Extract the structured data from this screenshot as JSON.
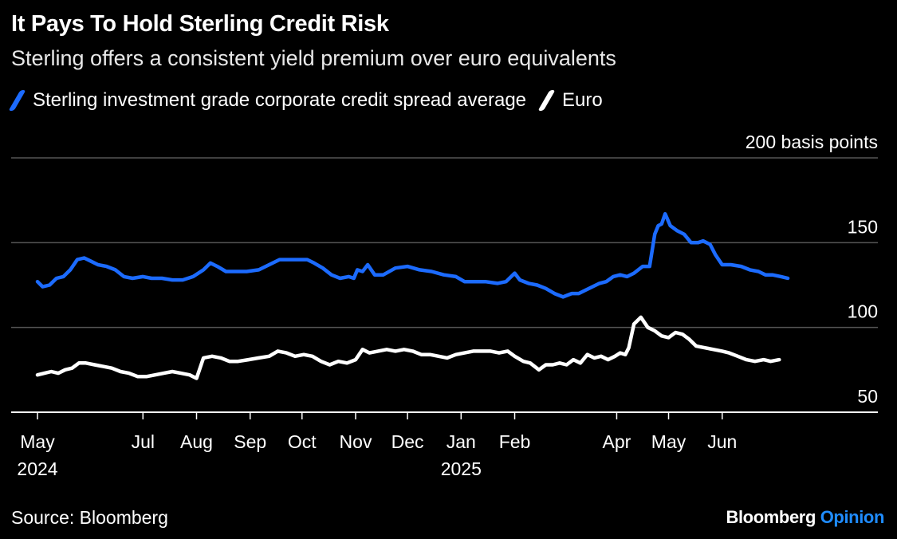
{
  "header": {
    "title": "It Pays To Hold Sterling Credit Risk",
    "subtitle": "Sterling offers a consistent yield premium over euro equivalents"
  },
  "footer": {
    "source": "Source: Bloomberg",
    "brand_main": "Bloomberg",
    "brand_accent": "Opinion"
  },
  "colors": {
    "sterling": "#1c6bff",
    "euro": "#ffffff",
    "gridline": "#555555",
    "baseline": "#ffffff",
    "brand_accent": "#1f8cff"
  },
  "chart_data": {
    "type": "line",
    "title": "It Pays To Hold Sterling Credit Risk",
    "subtitle": "Sterling offers a consistent yield premium over euro equivalents",
    "ylabel": "",
    "y_unit_label": "200 basis points",
    "ylim": [
      50,
      200
    ],
    "yticks": [
      50,
      100,
      150,
      200
    ],
    "ytick_labels": [
      "50",
      "100",
      "150",
      "200 basis points"
    ],
    "xlim": [
      "2024-05-01",
      "2025-07-20"
    ],
    "xticks": [
      {
        "date": "2024-05-01",
        "label": "May",
        "year": "2024"
      },
      {
        "date": "2024-07-01",
        "label": "Jul",
        "year": ""
      },
      {
        "date": "2024-08-01",
        "label": "Aug",
        "year": ""
      },
      {
        "date": "2024-09-01",
        "label": "Sep",
        "year": ""
      },
      {
        "date": "2024-10-01",
        "label": "Oct",
        "year": ""
      },
      {
        "date": "2024-11-01",
        "label": "Nov",
        "year": ""
      },
      {
        "date": "2024-12-01",
        "label": "Dec",
        "year": ""
      },
      {
        "date": "2025-01-01",
        "label": "Jan",
        "year": "2025"
      },
      {
        "date": "2025-02-01",
        "label": "Feb",
        "year": ""
      },
      {
        "date": "2025-04-01",
        "label": "Apr",
        "year": ""
      },
      {
        "date": "2025-05-01",
        "label": "May",
        "year": ""
      },
      {
        "date": "2025-06-01",
        "label": "Jun",
        "year": ""
      }
    ],
    "grid": true,
    "legend_position": "top-left",
    "series": [
      {
        "name": "Sterling investment grade corporate credit spread average",
        "points": [
          [
            "2024-05-01",
            127
          ],
          [
            "2024-05-04",
            124
          ],
          [
            "2024-05-08",
            125
          ],
          [
            "2024-05-12",
            129
          ],
          [
            "2024-05-16",
            130
          ],
          [
            "2024-05-20",
            134
          ],
          [
            "2024-05-24",
            140
          ],
          [
            "2024-05-28",
            141
          ],
          [
            "2024-06-01",
            139
          ],
          [
            "2024-06-05",
            137
          ],
          [
            "2024-06-10",
            136
          ],
          [
            "2024-06-15",
            134
          ],
          [
            "2024-06-20",
            130
          ],
          [
            "2024-06-25",
            129
          ],
          [
            "2024-07-01",
            130
          ],
          [
            "2024-07-06",
            129
          ],
          [
            "2024-07-12",
            129
          ],
          [
            "2024-07-18",
            128
          ],
          [
            "2024-07-24",
            128
          ],
          [
            "2024-07-30",
            130
          ],
          [
            "2024-08-05",
            134
          ],
          [
            "2024-08-09",
            138
          ],
          [
            "2024-08-13",
            136
          ],
          [
            "2024-08-18",
            133
          ],
          [
            "2024-08-24",
            133
          ],
          [
            "2024-08-30",
            133
          ],
          [
            "2024-09-06",
            134
          ],
          [
            "2024-09-12",
            137
          ],
          [
            "2024-09-18",
            140
          ],
          [
            "2024-09-24",
            140
          ],
          [
            "2024-09-30",
            140
          ],
          [
            "2024-10-04",
            140
          ],
          [
            "2024-10-08",
            138
          ],
          [
            "2024-10-13",
            135
          ],
          [
            "2024-10-18",
            131
          ],
          [
            "2024-10-23",
            129
          ],
          [
            "2024-10-28",
            130
          ],
          [
            "2024-10-31",
            129
          ],
          [
            "2024-11-02",
            134
          ],
          [
            "2024-11-05",
            133
          ],
          [
            "2024-11-08",
            137
          ],
          [
            "2024-11-12",
            131
          ],
          [
            "2024-11-17",
            131
          ],
          [
            "2024-11-24",
            135
          ],
          [
            "2024-12-01",
            136
          ],
          [
            "2024-12-08",
            134
          ],
          [
            "2024-12-15",
            133
          ],
          [
            "2024-12-22",
            131
          ],
          [
            "2024-12-29",
            130
          ],
          [
            "2025-01-03",
            127
          ],
          [
            "2025-01-06",
            127
          ],
          [
            "2025-01-10",
            127
          ],
          [
            "2025-01-15",
            127
          ],
          [
            "2025-01-22",
            126
          ],
          [
            "2025-01-27",
            127
          ],
          [
            "2025-02-01",
            132
          ],
          [
            "2025-02-04",
            128
          ],
          [
            "2025-02-09",
            126
          ],
          [
            "2025-02-14",
            125
          ],
          [
            "2025-02-19",
            123
          ],
          [
            "2025-02-24",
            120
          ],
          [
            "2025-03-01",
            118
          ],
          [
            "2025-03-06",
            120
          ],
          [
            "2025-03-10",
            120
          ],
          [
            "2025-03-14",
            122
          ],
          [
            "2025-03-18",
            124
          ],
          [
            "2025-03-22",
            126
          ],
          [
            "2025-03-26",
            127
          ],
          [
            "2025-03-30",
            130
          ],
          [
            "2025-04-03",
            131
          ],
          [
            "2025-04-07",
            130
          ],
          [
            "2025-04-11",
            132
          ],
          [
            "2025-04-16",
            136
          ],
          [
            "2025-04-20",
            136
          ],
          [
            "2025-04-23",
            155
          ],
          [
            "2025-04-25",
            160
          ],
          [
            "2025-04-27",
            161
          ],
          [
            "2025-04-29",
            167
          ],
          [
            "2025-05-02",
            160
          ],
          [
            "2025-05-06",
            157
          ],
          [
            "2025-05-10",
            155
          ],
          [
            "2025-05-14",
            150
          ],
          [
            "2025-05-18",
            150
          ],
          [
            "2025-05-21",
            151
          ],
          [
            "2025-05-25",
            149
          ],
          [
            "2025-05-28",
            143
          ],
          [
            "2025-06-01",
            137
          ],
          [
            "2025-06-06",
            137
          ],
          [
            "2025-06-12",
            136
          ],
          [
            "2025-06-17",
            134
          ],
          [
            "2025-06-22",
            133
          ],
          [
            "2025-06-26",
            131
          ],
          [
            "2025-06-30",
            131
          ],
          [
            "2025-07-05",
            130
          ],
          [
            "2025-07-09",
            129
          ]
        ]
      },
      {
        "name": "Euro",
        "points": [
          [
            "2024-05-01",
            72
          ],
          [
            "2024-05-05",
            73
          ],
          [
            "2024-05-09",
            74
          ],
          [
            "2024-05-13",
            73
          ],
          [
            "2024-05-17",
            75
          ],
          [
            "2024-05-21",
            76
          ],
          [
            "2024-05-25",
            79
          ],
          [
            "2024-05-29",
            79
          ],
          [
            "2024-06-03",
            78
          ],
          [
            "2024-06-08",
            77
          ],
          [
            "2024-06-13",
            76
          ],
          [
            "2024-06-18",
            74
          ],
          [
            "2024-06-23",
            73
          ],
          [
            "2024-06-28",
            71
          ],
          [
            "2024-07-03",
            71
          ],
          [
            "2024-07-08",
            72
          ],
          [
            "2024-07-13",
            73
          ],
          [
            "2024-07-18",
            74
          ],
          [
            "2024-07-23",
            73
          ],
          [
            "2024-07-28",
            72
          ],
          [
            "2024-08-01",
            70
          ],
          [
            "2024-08-05",
            82
          ],
          [
            "2024-08-10",
            83
          ],
          [
            "2024-08-15",
            82
          ],
          [
            "2024-08-20",
            80
          ],
          [
            "2024-08-25",
            80
          ],
          [
            "2024-08-31",
            81
          ],
          [
            "2024-09-06",
            82
          ],
          [
            "2024-09-12",
            83
          ],
          [
            "2024-09-17",
            86
          ],
          [
            "2024-09-22",
            85
          ],
          [
            "2024-09-27",
            83
          ],
          [
            "2024-10-02",
            84
          ],
          [
            "2024-10-07",
            83
          ],
          [
            "2024-10-12",
            80
          ],
          [
            "2024-10-17",
            78
          ],
          [
            "2024-10-22",
            80
          ],
          [
            "2024-10-27",
            79
          ],
          [
            "2024-11-01",
            81
          ],
          [
            "2024-11-05",
            87
          ],
          [
            "2024-11-09",
            85
          ],
          [
            "2024-11-14",
            86
          ],
          [
            "2024-11-19",
            87
          ],
          [
            "2024-11-24",
            86
          ],
          [
            "2024-11-29",
            87
          ],
          [
            "2024-12-04",
            86
          ],
          [
            "2024-12-09",
            84
          ],
          [
            "2024-12-14",
            84
          ],
          [
            "2024-12-19",
            83
          ],
          [
            "2024-12-24",
            82
          ],
          [
            "2024-12-29",
            84
          ],
          [
            "2025-01-03",
            85
          ],
          [
            "2025-01-08",
            86
          ],
          [
            "2025-01-13",
            86
          ],
          [
            "2025-01-18",
            86
          ],
          [
            "2025-01-23",
            85
          ],
          [
            "2025-01-28",
            86
          ],
          [
            "2025-02-01",
            83
          ],
          [
            "2025-02-06",
            80
          ],
          [
            "2025-02-10",
            79
          ],
          [
            "2025-02-15",
            75
          ],
          [
            "2025-02-19",
            78
          ],
          [
            "2025-02-23",
            78
          ],
          [
            "2025-02-27",
            79
          ],
          [
            "2025-03-03",
            78
          ],
          [
            "2025-03-07",
            81
          ],
          [
            "2025-03-11",
            79
          ],
          [
            "2025-03-15",
            84
          ],
          [
            "2025-03-19",
            82
          ],
          [
            "2025-03-23",
            83
          ],
          [
            "2025-03-27",
            81
          ],
          [
            "2025-03-31",
            83
          ],
          [
            "2025-04-03",
            85
          ],
          [
            "2025-04-06",
            84
          ],
          [
            "2025-04-08",
            88
          ],
          [
            "2025-04-11",
            102
          ],
          [
            "2025-04-15",
            106
          ],
          [
            "2025-04-19",
            100
          ],
          [
            "2025-04-23",
            98
          ],
          [
            "2025-04-27",
            95
          ],
          [
            "2025-05-01",
            94
          ],
          [
            "2025-05-05",
            97
          ],
          [
            "2025-05-09",
            96
          ],
          [
            "2025-05-13",
            93
          ],
          [
            "2025-05-17",
            89
          ],
          [
            "2025-05-22",
            88
          ],
          [
            "2025-05-27",
            87
          ],
          [
            "2025-06-01",
            86
          ],
          [
            "2025-06-05",
            85
          ],
          [
            "2025-06-10",
            83
          ],
          [
            "2025-06-15",
            81
          ],
          [
            "2025-06-20",
            80
          ],
          [
            "2025-06-25",
            81
          ],
          [
            "2025-06-29",
            80
          ],
          [
            "2025-07-04",
            81
          ]
        ]
      }
    ]
  }
}
